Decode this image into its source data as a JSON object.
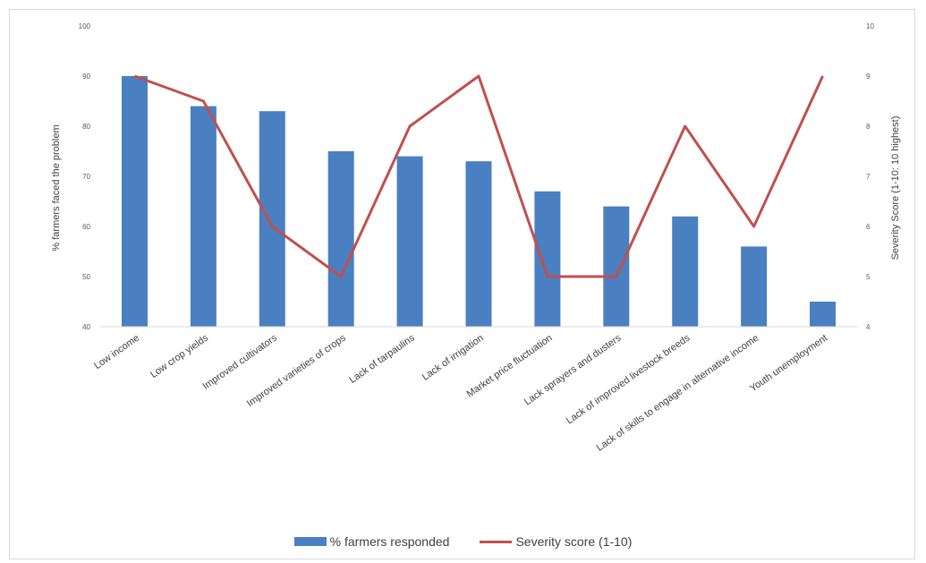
{
  "chart_data": {
    "type": "bar",
    "categories": [
      "Low income",
      "Low crop yields",
      "Improved cultivators",
      "Improved varieties of crops",
      "Lack of tarpaulins",
      "Lack of irrigation",
      "Market price fluctuation",
      "Lack sprayers and dusters",
      "Lack of improved livestock breeds",
      "Lack of skills to engage in alternative income",
      "Youth unemployment"
    ],
    "series": [
      {
        "name": "% farmers responded",
        "type": "bar",
        "axis": "left",
        "color": "#4a7fc1",
        "values": [
          90,
          84,
          83,
          75,
          74,
          73,
          67,
          64,
          62,
          56,
          45
        ]
      },
      {
        "name": "Severity score (1-10)",
        "type": "line",
        "axis": "right",
        "color": "#c0504d",
        "values": [
          9,
          8.5,
          6,
          5,
          8,
          9,
          5,
          5,
          8,
          6,
          9
        ]
      }
    ],
    "ylabel": "% farmers faced the problem",
    "y2label": "Severity Score (1-10: 10 highest)",
    "ylim": [
      40,
      100
    ],
    "y_ticks": [
      "40",
      "50",
      "60",
      "70",
      "80",
      "90",
      "100"
    ],
    "y2lim": [
      4,
      10
    ],
    "y2_ticks": [
      "4",
      "5",
      "6",
      "7",
      "8",
      "9",
      "10"
    ],
    "grid": false,
    "legend": "bottom"
  }
}
